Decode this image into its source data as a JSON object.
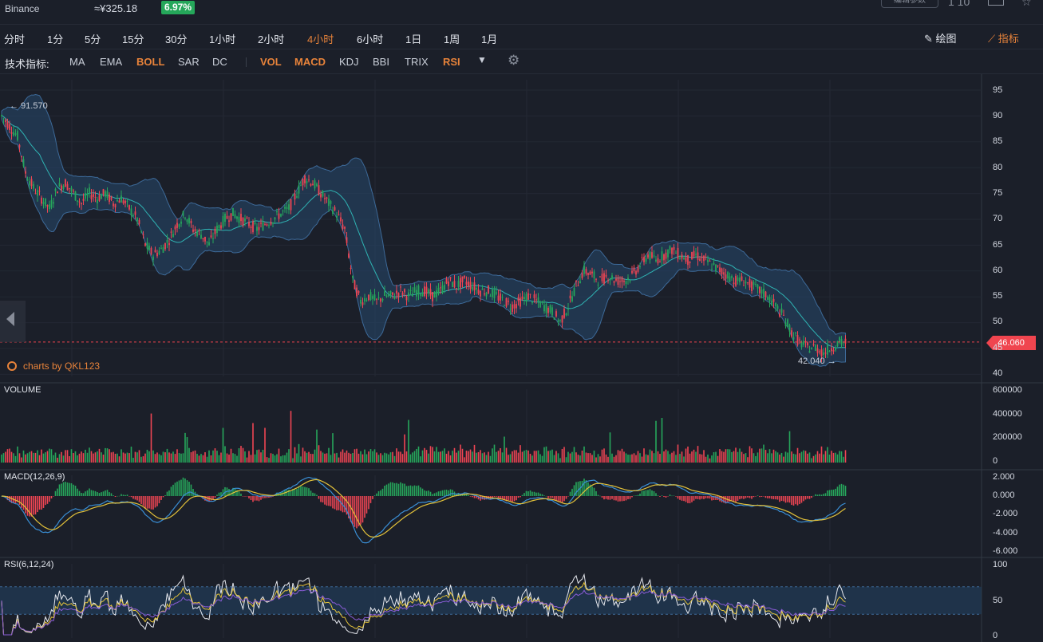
{
  "header": {
    "exchange": "Binance",
    "price_cny": "≈¥325.18",
    "change": "6.97%",
    "params_button": "编辑参数",
    "interval_text": "1 10"
  },
  "timeframes": [
    {
      "label": "分时",
      "active": false
    },
    {
      "label": "1分",
      "active": false
    },
    {
      "label": "5分",
      "active": false
    },
    {
      "label": "15分",
      "active": false
    },
    {
      "label": "30分",
      "active": false
    },
    {
      "label": "1小时",
      "active": false
    },
    {
      "label": "2小时",
      "active": false
    },
    {
      "label": "4小时",
      "active": true
    },
    {
      "label": "6小时",
      "active": false
    },
    {
      "label": "1日",
      "active": false
    },
    {
      "label": "1周",
      "active": false
    },
    {
      "label": "1月",
      "active": false
    }
  ],
  "tools": {
    "draw": "绘图",
    "indicators": "指标"
  },
  "indicator_bar": {
    "label": "技术指标:",
    "main": [
      {
        "label": "MA",
        "active": false
      },
      {
        "label": "EMA",
        "active": false
      },
      {
        "label": "BOLL",
        "active": true
      },
      {
        "label": "SAR",
        "active": false
      },
      {
        "label": "DC",
        "active": false
      }
    ],
    "sub": [
      {
        "label": "VOL",
        "active": true
      },
      {
        "label": "MACD",
        "active": true
      },
      {
        "label": "KDJ",
        "active": false
      },
      {
        "label": "BBI",
        "active": false
      },
      {
        "label": "TRIX",
        "active": false
      },
      {
        "label": "RSI",
        "active": true
      }
    ]
  },
  "colors": {
    "up": "#26a65b",
    "down": "#ef4553",
    "boll_mid": "#2fb3b3",
    "band_fill": "#27486e",
    "macd_dif": "#3a8fd6",
    "macd_dea": "#e3c23a",
    "rsi_6": "#e6e8ee",
    "rsi_12": "#e3c23a",
    "rsi_24": "#8a5cd6",
    "accent": "#e8833a"
  },
  "chart_data": {
    "type": "candlestick",
    "timeframe": "4小时",
    "branding": "charts by QKL123",
    "current_price": "46.060",
    "max_label": "← 91.570",
    "min_label": "42.040 →",
    "x": [
      0,
      10,
      20,
      30,
      40,
      50,
      60,
      70,
      80,
      90,
      100,
      110,
      120,
      130,
      140,
      150,
      160,
      170,
      180,
      190,
      200,
      210,
      220,
      230,
      240,
      250,
      260,
      270,
      280,
      290,
      300,
      310,
      320,
      330,
      340,
      350,
      360,
      370,
      380,
      390,
      400,
      410,
      420,
      430,
      440,
      450,
      460,
      470,
      480,
      490,
      500,
      510,
      520,
      530,
      540,
      550,
      560,
      570,
      580,
      590,
      600,
      610,
      620,
      630,
      640,
      650,
      660,
      670,
      680,
      690,
      700,
      710,
      720,
      730,
      740,
      750,
      760,
      770,
      780,
      790,
      800,
      810,
      820,
      830,
      840,
      850,
      860,
      870,
      880,
      890,
      900,
      910,
      920,
      930,
      940,
      950,
      960,
      970,
      980,
      990,
      1000,
      1010,
      1020,
      1030,
      1040,
      1050,
      1060
    ],
    "close": [
      90,
      88,
      86,
      79,
      76,
      74,
      72,
      76,
      77,
      75,
      73,
      75,
      74,
      75,
      73,
      74,
      72,
      70,
      65,
      63,
      64,
      66,
      69,
      71,
      68,
      67,
      65,
      68,
      70,
      71,
      70,
      69,
      68,
      69,
      70,
      71,
      72,
      75,
      78,
      77,
      75,
      73,
      71,
      68,
      58,
      54,
      55,
      54,
      55,
      55,
      56,
      55,
      56,
      56,
      55,
      56,
      58,
      57,
      58,
      57,
      56,
      56,
      55,
      54,
      53,
      54,
      55,
      54,
      53,
      52,
      50,
      53,
      57,
      60,
      59,
      58,
      59,
      58,
      58,
      59,
      61,
      63,
      62,
      63,
      64,
      63,
      62,
      63,
      62,
      61,
      60,
      59,
      58,
      58,
      57,
      56,
      55,
      53,
      51,
      48,
      46,
      45,
      45,
      44,
      45,
      46,
      46
    ],
    "y_range": [
      40,
      95
    ],
    "y_ticks": [
      "95",
      "90",
      "85",
      "80",
      "75",
      "70",
      "65",
      "60",
      "55",
      "50",
      "45",
      "40"
    ],
    "volume": {
      "label": "VOLUME",
      "ticks": [
        "600000",
        "400000",
        "200000",
        "0"
      ]
    },
    "macd": {
      "label": "MACD(12,26,9)",
      "ticks": [
        "2.000",
        "0.000",
        "-2.000",
        "-4.000",
        "-6.000"
      ]
    },
    "rsi": {
      "label": "RSI(6,12,24)",
      "ticks": [
        "100",
        "50",
        "0"
      ]
    }
  }
}
